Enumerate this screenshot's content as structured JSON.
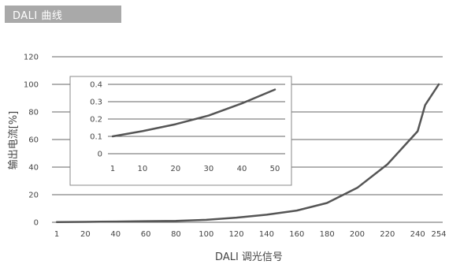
{
  "header": {
    "title": "DALI 曲线"
  },
  "chart_data": [
    {
      "type": "line",
      "title": "",
      "xlabel": "DALI 调光信号",
      "ylabel": "输出电流[%]",
      "x_ticks": [
        1,
        20,
        40,
        60,
        80,
        100,
        120,
        140,
        160,
        180,
        200,
        220,
        240,
        254
      ],
      "y_ticks": [
        0,
        20,
        40,
        60,
        80,
        100,
        120
      ],
      "xlim": [
        1,
        254
      ],
      "ylim": [
        0,
        120
      ],
      "grid": "horizontal",
      "series": [
        {
          "name": "",
          "x": [
            1,
            20,
            40,
            60,
            80,
            100,
            120,
            140,
            160,
            180,
            200,
            220,
            240,
            245,
            254
          ],
          "y": [
            0.1,
            0.3,
            0.5,
            0.8,
            1.0,
            1.8,
            3.4,
            5.5,
            8.5,
            14,
            25,
            42,
            66,
            85,
            100
          ]
        }
      ],
      "color": "#555555"
    },
    {
      "type": "line",
      "title": "",
      "xlabel": "",
      "ylabel": "",
      "x_ticks": [
        1,
        10,
        20,
        30,
        40,
        50
      ],
      "y_ticks": [
        0,
        0.1,
        0.2,
        0.3,
        0.4
      ],
      "xlim": [
        1,
        50
      ],
      "ylim": [
        0,
        0.4
      ],
      "grid": "horizontal",
      "series": [
        {
          "name": "",
          "x": [
            1,
            10,
            20,
            30,
            40,
            50
          ],
          "y": [
            0.1,
            0.13,
            0.17,
            0.22,
            0.29,
            0.37
          ]
        }
      ],
      "color": "#555555"
    }
  ]
}
